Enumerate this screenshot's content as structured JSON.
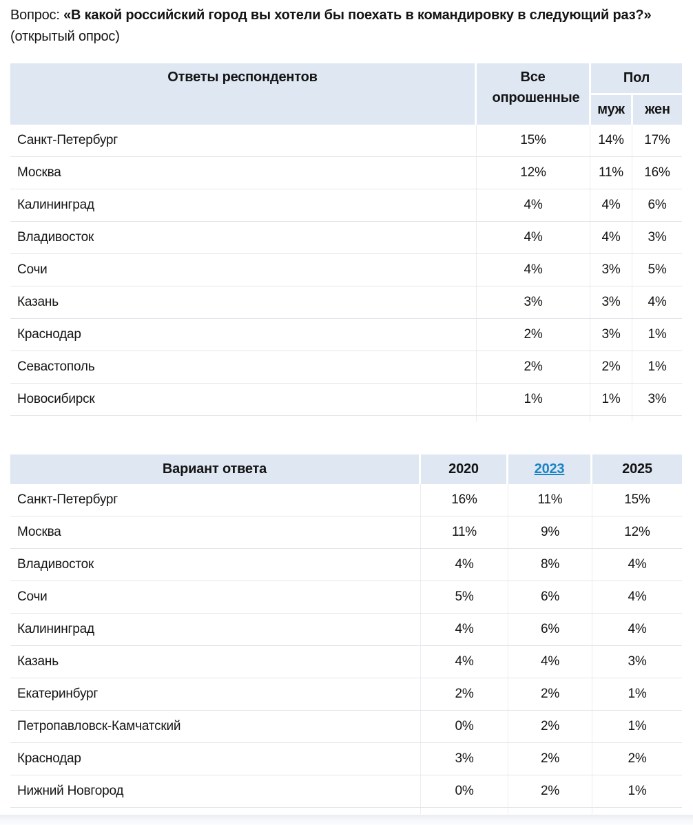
{
  "title": {
    "prefix": "Вопрос: ",
    "question": "«В какой российский город вы хотели бы поехать в командировку в следующий раз?»",
    "suffix": " (открытый опрос)"
  },
  "colors": {
    "header_bg": "#dee7f2",
    "link": "#1a85c5",
    "row_border": "#e2e5e9",
    "col_border": "#ebedf0"
  },
  "table1": {
    "headers": {
      "answers": "Ответы респондентов",
      "all": "Все опрошенные",
      "gender": "Пол",
      "male": "муж",
      "female": "жен"
    },
    "rows": [
      {
        "label": "Санкт-Петербург",
        "all": "15%",
        "male": "14%",
        "female": "17%"
      },
      {
        "label": "Москва",
        "all": "12%",
        "male": "11%",
        "female": "16%"
      },
      {
        "label": "Калининград",
        "all": "4%",
        "male": "4%",
        "female": "6%"
      },
      {
        "label": "Владивосток",
        "all": "4%",
        "male": "4%",
        "female": "3%"
      },
      {
        "label": "Сочи",
        "all": "4%",
        "male": "3%",
        "female": "5%"
      },
      {
        "label": "Казань",
        "all": "3%",
        "male": "3%",
        "female": "4%"
      },
      {
        "label": "Краснодар",
        "all": "2%",
        "male": "3%",
        "female": "1%"
      },
      {
        "label": "Севастополь",
        "all": "2%",
        "male": "2%",
        "female": "1%"
      },
      {
        "label": "Новосибирск",
        "all": "1%",
        "male": "1%",
        "female": "3%"
      }
    ]
  },
  "table2": {
    "headers": {
      "variant": "Вариант ответа",
      "y2020": "2020",
      "y2023": "2023",
      "y2025": "2025"
    },
    "rows": [
      {
        "label": "Санкт-Петербург",
        "y2020": "16%",
        "y2023": "11%",
        "y2025": "15%"
      },
      {
        "label": "Москва",
        "y2020": "11%",
        "y2023": "9%",
        "y2025": "12%"
      },
      {
        "label": "Владивосток",
        "y2020": "4%",
        "y2023": "8%",
        "y2025": "4%"
      },
      {
        "label": "Сочи",
        "y2020": "5%",
        "y2023": "6%",
        "y2025": "4%"
      },
      {
        "label": "Калининград",
        "y2020": "4%",
        "y2023": "6%",
        "y2025": "4%"
      },
      {
        "label": "Казань",
        "y2020": "4%",
        "y2023": "4%",
        "y2025": "3%"
      },
      {
        "label": "Екатеринбург",
        "y2020": "2%",
        "y2023": "2%",
        "y2025": "1%"
      },
      {
        "label": "Петропавловск-Камчатский",
        "y2020": "0%",
        "y2023": "2%",
        "y2025": "1%"
      },
      {
        "label": "Краснодар",
        "y2020": "3%",
        "y2023": "2%",
        "y2025": "2%"
      },
      {
        "label": "Нижний Новгород",
        "y2020": "0%",
        "y2023": "2%",
        "y2025": "1%"
      }
    ]
  }
}
